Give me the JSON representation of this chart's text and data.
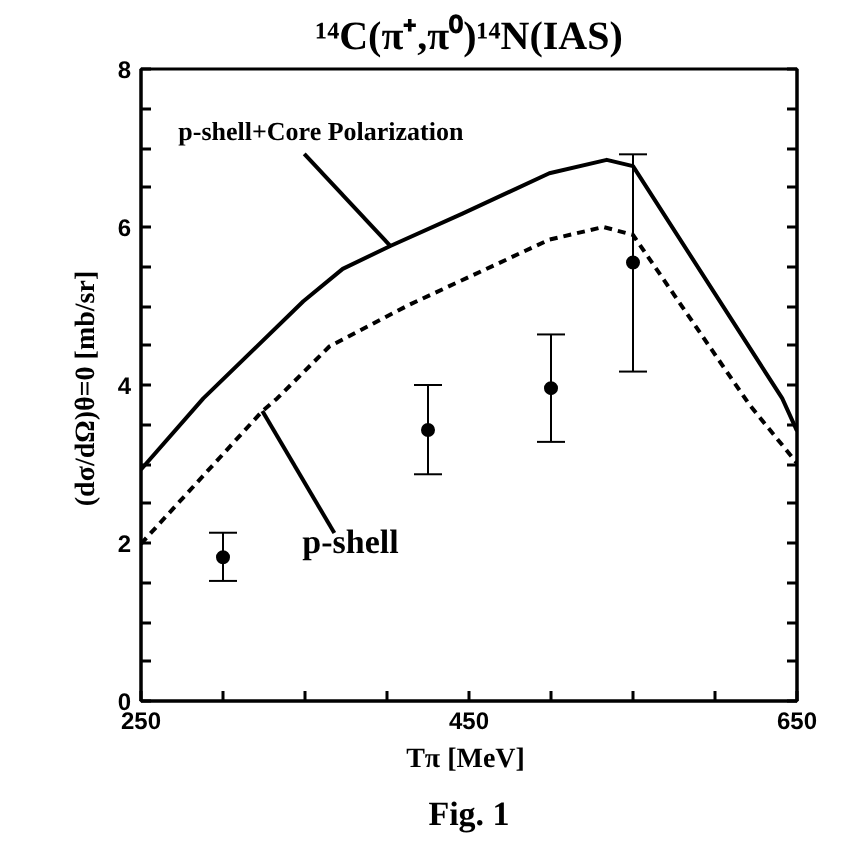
{
  "chart_data": {
    "type": "line",
    "title": "¹⁴C(π⁺,π⁰)¹⁴N(IAS)",
    "xlabel": "Tπ  [MeV]",
    "ylabel": "(dσ/dΩ)θ=0  [mb/sr]",
    "xlim": [
      250,
      650
    ],
    "ylim": [
      0,
      8
    ],
    "xticks": [
      250,
      {
        "value": 300,
        "label": null
      },
      {
        "value": 350,
        "label": null
      },
      {
        "value": 400,
        "label": null
      },
      450,
      {
        "value": 500,
        "label": null
      },
      {
        "value": 550,
        "label": null
      },
      {
        "value": 600,
        "label": null
      },
      650
    ],
    "yticks": [
      0,
      {
        "value": 0.5,
        "label": null
      },
      {
        "value": 1,
        "label": null
      },
      {
        "value": 1.5,
        "label": null
      },
      2,
      {
        "value": 2.5,
        "label": null
      },
      {
        "value": 3,
        "label": null
      },
      {
        "value": 3.5,
        "label": null
      },
      4,
      {
        "value": 4.5,
        "label": null
      },
      {
        "value": 5,
        "label": null
      },
      {
        "value": 5.5,
        "label": null
      },
      6,
      {
        "value": 6.5,
        "label": null
      },
      {
        "value": 7,
        "label": null
      },
      {
        "value": 7.5,
        "label": null
      },
      8
    ],
    "series": [
      {
        "color": "#000000",
        "line_style": "solid",
        "x": [
          250,
          288,
          349,
          373,
          402,
          446,
          499,
          534,
          550,
          641,
          650
        ],
        "values": [
          2.93,
          3.83,
          5.06,
          5.47,
          5.76,
          6.17,
          6.68,
          6.85,
          6.77,
          3.83,
          3.42
        ]
      },
      {
        "color": "#000000",
        "line_style": "dashed",
        "x": [
          250,
          324,
          333,
          365,
          414,
          499,
          532,
          550,
          621,
          650
        ],
        "values": [
          1.99,
          3.67,
          3.83,
          4.49,
          5.02,
          5.84,
          6.0,
          5.9,
          3.75,
          3.01
        ]
      },
      {
        "type": "scatter",
        "color": "#000000",
        "marker": "circle",
        "x": [
          300,
          425,
          500,
          550
        ],
        "values": [
          1.82,
          3.43,
          3.96,
          5.55
        ],
        "errors": [
          [
            1.52,
            2.13
          ],
          [
            2.87,
            4.0
          ],
          [
            3.28,
            4.64
          ],
          [
            4.17,
            6.92
          ]
        ]
      }
    ],
    "annotations": [
      {
        "text": "p-shell+Core Polarization",
        "x": 402,
        "y": 5.76
      },
      {
        "text": "p-shell",
        "x": 324,
        "y": 3.67
      },
      "Fig. 1"
    ]
  }
}
